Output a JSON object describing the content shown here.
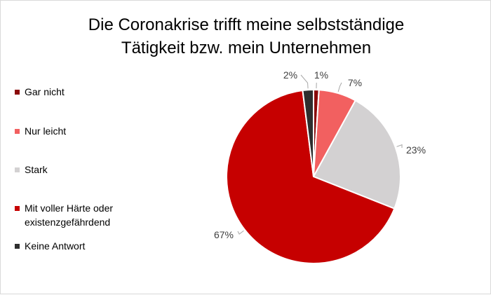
{
  "chart_data": {
    "type": "pie",
    "title": "Die Coronakrise trifft meine selbstständige Tätigkeit bzw. mein Unternehmen",
    "title_lines": [
      "Die Coronakrise trifft meine selbstständige",
      "Tätigkeit bzw. mein Unternehmen"
    ],
    "legend_position": "left",
    "slices": [
      {
        "label": "Gar nicht",
        "label_lines": [
          "Gar nicht"
        ],
        "value": 1,
        "display": "1%",
        "color": "#8b0a0a"
      },
      {
        "label": "Nur leicht",
        "label_lines": [
          "Nur leicht"
        ],
        "value": 7,
        "display": "7%",
        "color": "#f26060"
      },
      {
        "label": "Stark",
        "label_lines": [
          "Stark"
        ],
        "value": 23,
        "display": "23%",
        "color": "#d3d1d2"
      },
      {
        "label": "Mit voller Härte oder existenzgefährdend",
        "label_lines": [
          "Mit voller Härte oder",
          "existenzgefährdend"
        ],
        "value": 67,
        "display": "67%",
        "color": "#c60000"
      },
      {
        "label": "Keine Antwort",
        "label_lines": [
          "Keine Antwort"
        ],
        "value": 2,
        "display": "2%",
        "color": "#2e2e2e"
      }
    ]
  }
}
